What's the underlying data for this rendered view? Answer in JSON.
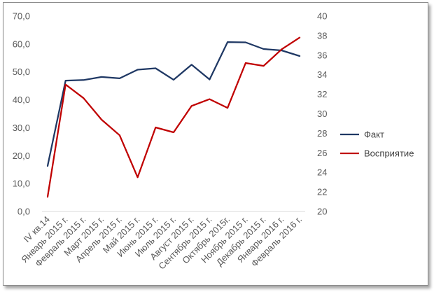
{
  "chart_data": {
    "type": "line",
    "categories": [
      "IV кв.14",
      "Январь 2015 г.",
      "Февраль 2015 г.",
      "Март 2015 г.",
      "Апрель 2015 г.",
      "Май 2015 г.",
      "Июнь 2015 г.",
      "Июль 2015 г.",
      "Август 2015 г.",
      "Сентябрь 2015 г.",
      "Октябрь 2015г.",
      "Ноябрь 2015 г.",
      "Декабрь 2015 г.",
      "Январь 2016 г.",
      "Февраль 2016 г."
    ],
    "series": [
      {
        "name": "Факт",
        "axis": "left",
        "color": "#1f3864",
        "values": [
          16.3,
          46.9,
          47.1,
          48.2,
          47.7,
          50.8,
          51.3,
          47.2,
          52.6,
          47.3,
          60.7,
          60.6,
          58.2,
          57.7,
          55.7
        ]
      },
      {
        "name": "Восприятие",
        "axis": "right",
        "color": "#c00000",
        "values": [
          21.5,
          33.0,
          31.6,
          29.4,
          27.8,
          23.5,
          28.6,
          28.1,
          30.8,
          31.5,
          30.6,
          35.2,
          34.9,
          36.6,
          37.8
        ]
      }
    ],
    "y_left": {
      "min": 0,
      "max": 70,
      "ticks": [
        "0,0",
        "10,0",
        "20,0",
        "30,0",
        "40,0",
        "50,0",
        "60,0",
        "70,0"
      ]
    },
    "y_right": {
      "min": 20,
      "max": 40,
      "ticks": [
        "20",
        "22",
        "24",
        "26",
        "28",
        "30",
        "32",
        "34",
        "36",
        "38",
        "40"
      ]
    },
    "legend": {
      "position": "right",
      "entries": [
        "Факт",
        "Восприятие"
      ]
    },
    "grid": false
  }
}
